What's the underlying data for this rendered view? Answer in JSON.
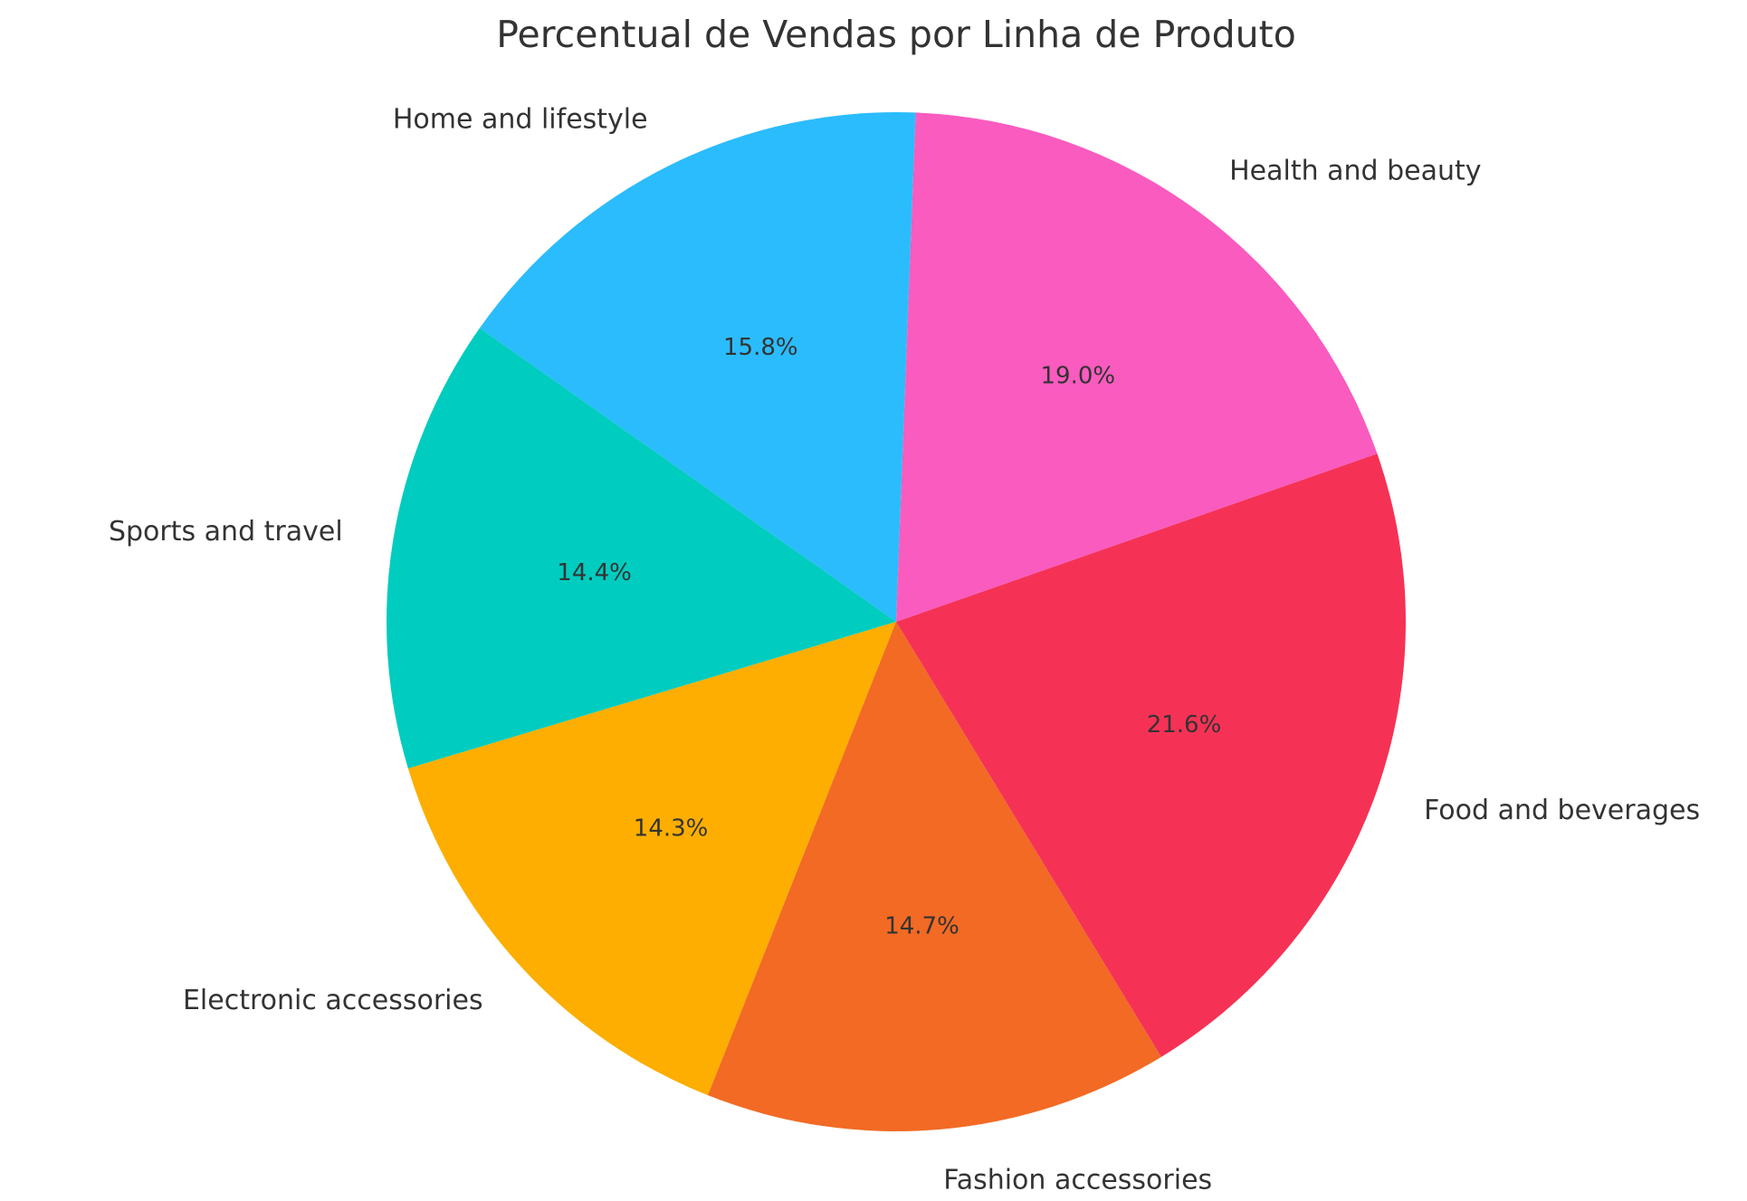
{
  "chart_data": {
    "type": "pie",
    "title": "Percentual de Vendas por Linha de Produto",
    "slices": [
      {
        "label": "Home and lifestyle",
        "value": 15.8,
        "pct_label": "15.8%",
        "color": "#2bbcfd"
      },
      {
        "label": "Sports and travel",
        "value": 14.4,
        "pct_label": "14.4%",
        "color": "#00ccbf"
      },
      {
        "label": "Electronic accessories",
        "value": 14.3,
        "pct_label": "14.3%",
        "color": "#fdae00"
      },
      {
        "label": "Fashion accessories",
        "value": 14.7,
        "pct_label": "14.7%",
        "color": "#f26a24"
      },
      {
        "label": "Food and beverages",
        "value": 21.6,
        "pct_label": "21.6%",
        "color": "#f53255"
      },
      {
        "label": "Health and beauty",
        "value": 19.0,
        "pct_label": "19.0%",
        "color": "#f95bbf"
      }
    ],
    "legend": "none"
  }
}
